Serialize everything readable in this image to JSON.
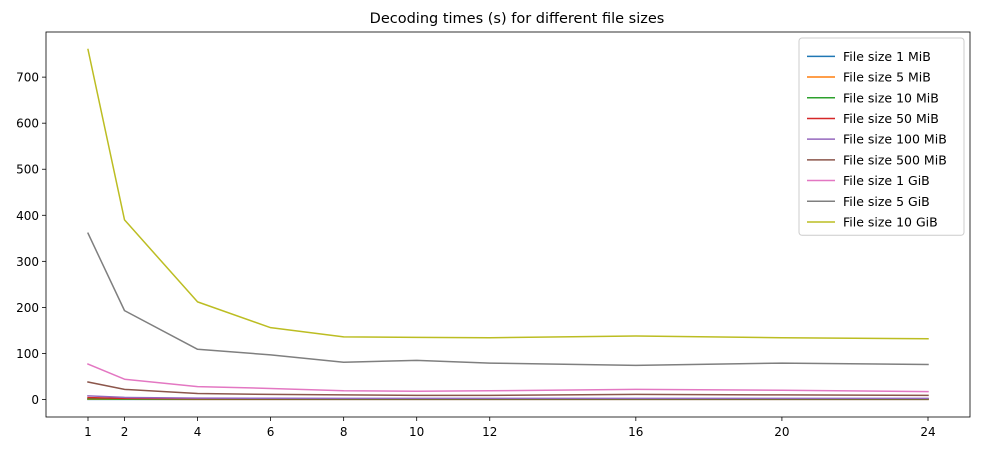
{
  "chart_data": {
    "type": "line",
    "title": "Decoding times (s) for different file sizes",
    "xlabel": "",
    "ylabel": "",
    "x": [
      1,
      2,
      4,
      6,
      8,
      10,
      12,
      16,
      20,
      24
    ],
    "xticks": [
      1,
      2,
      4,
      6,
      8,
      10,
      12,
      16,
      20,
      24
    ],
    "yticks": [
      0,
      100,
      200,
      300,
      400,
      500,
      600,
      700
    ],
    "xlim": [
      -0.15,
      25.15
    ],
    "ylim": [
      -38,
      798
    ],
    "grid": false,
    "legend_position": "upper right",
    "series": [
      {
        "name": "File size 1 MiB",
        "color": "#1f77b4",
        "values": [
          0.3,
          0.2,
          0.2,
          0.2,
          0.2,
          0.2,
          0.2,
          0.2,
          0.2,
          0.2
        ]
      },
      {
        "name": "File size 5 MiB",
        "color": "#ff7f0e",
        "values": [
          0.8,
          0.5,
          0.4,
          0.4,
          0.4,
          0.4,
          0.4,
          0.4,
          0.4,
          0.4
        ]
      },
      {
        "name": "File size 10 MiB",
        "color": "#2ca02c",
        "values": [
          1.5,
          0.9,
          0.7,
          0.6,
          0.6,
          0.6,
          0.6,
          0.6,
          0.6,
          0.6
        ]
      },
      {
        "name": "File size 50 MiB",
        "color": "#d62728",
        "values": [
          4,
          2.5,
          1.8,
          1.6,
          1.5,
          1.5,
          1.5,
          1.5,
          1.5,
          1.5
        ]
      },
      {
        "name": "File size 100 MiB",
        "color": "#9467bd",
        "values": [
          8,
          4.5,
          3,
          2.6,
          2.5,
          2.5,
          2.5,
          2.5,
          2.5,
          2.5
        ]
      },
      {
        "name": "File size 500 MiB",
        "color": "#8c564b",
        "values": [
          38,
          22,
          13,
          11,
          10,
          9,
          9,
          11,
          10,
          9
        ]
      },
      {
        "name": "File size 1 GiB",
        "color": "#e377c2",
        "values": [
          77,
          44,
          28,
          24,
          19,
          18,
          19,
          22,
          20,
          17
        ]
      },
      {
        "name": "File size 5 GiB",
        "color": "#7f7f7f",
        "values": [
          361,
          193,
          109,
          97,
          81,
          85,
          79,
          74,
          79,
          76
        ]
      },
      {
        "name": "File size 10 GiB",
        "color": "#bcbd22",
        "values": [
          760,
          390,
          212,
          156,
          136,
          135,
          134,
          138,
          134,
          132
        ]
      }
    ]
  }
}
